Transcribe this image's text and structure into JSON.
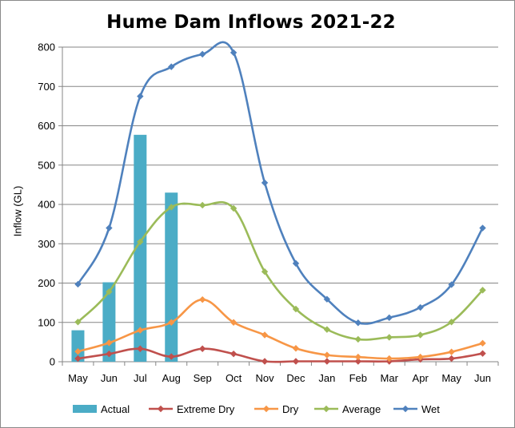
{
  "chart_data": {
    "type": "bar",
    "title": "Hume Dam Inflows 2021-22",
    "xlabel": "",
    "ylabel": "Inflow (GL)",
    "ylim": [
      0,
      800
    ],
    "yticks": [
      0,
      100,
      200,
      300,
      400,
      500,
      600,
      700,
      800
    ],
    "grid": true,
    "legend_position": "bottom",
    "categories": [
      "May",
      "Jun",
      "Jul",
      "Aug",
      "Sep",
      "Oct",
      "Nov",
      "Dec",
      "Jan",
      "Feb",
      "Mar",
      "Apr",
      "May",
      "Jun"
    ],
    "series": [
      {
        "name": "Actual",
        "kind": "bar",
        "color": "#4bacc6",
        "values": [
          80,
          202,
          577,
          430,
          null,
          null,
          null,
          null,
          null,
          null,
          null,
          null,
          null,
          null
        ]
      },
      {
        "name": "Extreme Dry",
        "kind": "line",
        "color": "#c0504d",
        "values": [
          8,
          20,
          33,
          13,
          33,
          20,
          1,
          1,
          1,
          1,
          1,
          6,
          8,
          21
        ]
      },
      {
        "name": "Dry",
        "kind": "line",
        "color": "#f79646",
        "values": [
          26,
          48,
          80,
          100,
          158,
          100,
          68,
          34,
          17,
          12,
          8,
          12,
          25,
          47
        ]
      },
      {
        "name": "Average",
        "kind": "line",
        "color": "#9bbb59",
        "values": [
          101,
          178,
          305,
          393,
          398,
          390,
          229,
          134,
          82,
          57,
          62,
          68,
          101,
          182
        ]
      },
      {
        "name": "Wet",
        "kind": "line",
        "color": "#4f81bd",
        "values": [
          197,
          340,
          675,
          750,
          782,
          786,
          455,
          250,
          159,
          99,
          112,
          138,
          196,
          340
        ]
      }
    ]
  }
}
